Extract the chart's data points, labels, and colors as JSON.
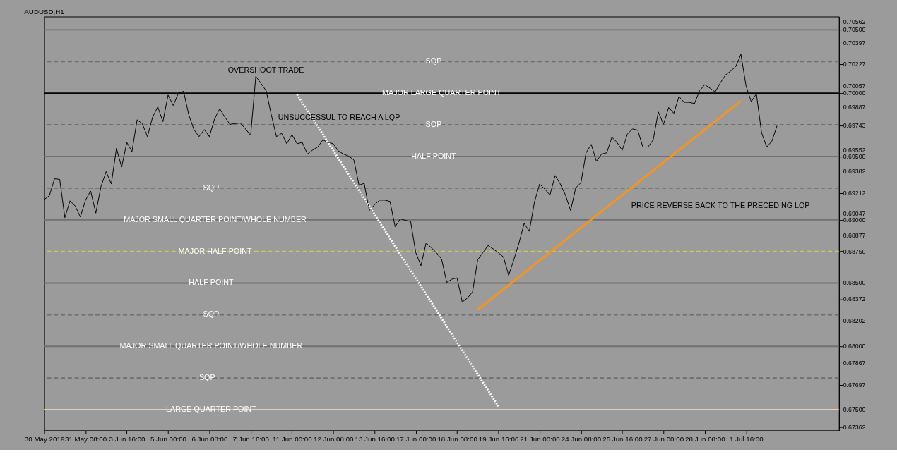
{
  "chart_data": {
    "type": "line",
    "title": "AUDUSD,H1",
    "categories": [
      "30 May 2019",
      null,
      null,
      null,
      null,
      null,
      null,
      null,
      "31 May 08:00",
      null,
      null,
      null,
      null,
      null,
      null,
      null,
      "3 Jun 16:00",
      null,
      null,
      null,
      null,
      null,
      null,
      null,
      "5 Jun 00:00",
      null,
      null,
      null,
      null,
      null,
      null,
      null,
      "6 Jun 08:00",
      null,
      null,
      null,
      null,
      null,
      null,
      null,
      "7 Jun 16:00",
      null,
      null,
      null,
      null,
      null,
      null,
      null,
      "11 Jun 00:00",
      null,
      null,
      null,
      null,
      null,
      null,
      null,
      "12 Jun 08:00",
      null,
      null,
      null,
      null,
      null,
      null,
      null,
      "13 Jun 16:00",
      null,
      null,
      null,
      null,
      null,
      null,
      null,
      "17 Jun 00:00",
      null,
      null,
      null,
      null,
      null,
      null,
      null,
      "18 Jun 08:00",
      null,
      null,
      null,
      null,
      null,
      null,
      null,
      "19 Jun 16:00",
      null,
      null,
      null,
      null,
      null,
      null,
      null,
      "21 Jun 00:00",
      null,
      null,
      null,
      null,
      null,
      null,
      null,
      "24 Jun 08:00",
      null,
      null,
      null,
      null,
      null,
      null,
      null,
      "25 Jun 16:00",
      null,
      null,
      null,
      null,
      null,
      null,
      null,
      "27 Jun 00:00",
      null,
      null,
      null,
      null,
      null,
      null,
      null,
      "28 Jun 08:00",
      null,
      null,
      null,
      null,
      null,
      null,
      null,
      "1 Jul 16:00",
      null,
      null,
      null,
      null,
      null,
      null,
      null,
      null,
      null,
      null,
      null,
      null,
      null,
      null,
      null,
      null,
      null,
      null
    ],
    "ylim": [
      0.67336,
      0.70605
    ],
    "yticks": [
      {
        "value": 0.70562,
        "label": "0.70562"
      },
      {
        "value": 0.705,
        "label": "0.70500"
      },
      {
        "value": 0.70397,
        "label": "0.70397"
      },
      {
        "value": 0.70227,
        "label": "0.70227"
      },
      {
        "value": 0.70057,
        "label": "0.70057"
      },
      {
        "value": 0.7,
        "label": "0.70000"
      },
      {
        "value": 0.69887,
        "label": "0.69887"
      },
      {
        "value": 0.69743,
        "label": "0.69743"
      },
      {
        "value": 0.69552,
        "label": "0.69552"
      },
      {
        "value": 0.695,
        "label": "0.69500"
      },
      {
        "value": 0.69382,
        "label": "0.69382"
      },
      {
        "value": 0.69212,
        "label": "0.69212"
      },
      {
        "value": 0.69047,
        "label": "0.69047"
      },
      {
        "value": 0.69,
        "label": "0.69000"
      },
      {
        "value": 0.68877,
        "label": "0.68877"
      },
      {
        "value": 0.6875,
        "label": "0.68750"
      },
      {
        "value": 0.685,
        "label": "0.68500"
      },
      {
        "value": 0.68372,
        "label": "0.68372"
      },
      {
        "value": 0.68202,
        "label": "0.68202"
      },
      {
        "value": 0.68,
        "label": "0.68000"
      },
      {
        "value": 0.67867,
        "label": "0.67867"
      },
      {
        "value": 0.67697,
        "label": "0.67697"
      },
      {
        "value": 0.675,
        "label": "0.67500"
      },
      {
        "value": 0.67362,
        "label": "0.67362"
      }
    ],
    "grid": false,
    "marker": "none",
    "series": [
      {
        "color": "#000000",
        "line_style": "solid",
        "values": [
          0.6916,
          0.69191,
          0.69324,
          0.69319,
          0.69017,
          0.6915,
          0.69109,
          0.69022,
          0.69155,
          0.69227,
          0.69053,
          0.69263,
          0.6938,
          0.69283,
          0.69565,
          0.69416,
          0.69611,
          0.69539,
          0.6979,
          0.69759,
          0.69657,
          0.69811,
          0.69892,
          0.69775,
          0.69985,
          0.69903,
          0.7,
          0.70015,
          0.69831,
          0.69713,
          0.69657,
          0.69713,
          0.69657,
          0.69795,
          0.69877,
          0.69811,
          0.69754,
          0.6976,
          0.69764,
          0.69718,
          0.69667,
          0.70133,
          0.70077,
          0.7002,
          0.6983,
          0.69657,
          0.69683,
          0.69601,
          0.69672,
          0.69601,
          0.69611,
          0.69519,
          0.6955,
          0.69575,
          0.69631,
          0.6961,
          0.69601,
          0.69544,
          0.69519,
          0.69503,
          0.69473,
          0.69273,
          0.69288,
          0.69073,
          0.69119,
          0.69155,
          0.69155,
          0.69145,
          0.68945,
          0.69007,
          0.68996,
          0.68986,
          0.6874,
          0.68638,
          0.68817,
          0.6878,
          0.6874,
          0.6869,
          0.68505,
          0.68531,
          0.68541,
          0.68351,
          0.68382,
          0.6843,
          0.68684,
          0.6874,
          0.68797,
          0.6877,
          0.6874,
          0.68705,
          0.68561,
          0.68684,
          0.68817,
          0.68971,
          0.68909,
          0.6914,
          0.69283,
          0.69242,
          0.69196,
          0.6935,
          0.69283,
          0.69196,
          0.69073,
          0.69252,
          0.69293,
          0.69529,
          0.69596,
          0.69462,
          0.69519,
          0.69529,
          0.69652,
          0.69611,
          0.69549,
          0.69677,
          0.69718,
          0.69708,
          0.69575,
          0.69575,
          0.69631,
          0.69852,
          0.69754,
          0.69887,
          0.69841,
          0.69974,
          0.69928,
          0.69928,
          0.69918,
          0.7002,
          0.70067,
          0.7004,
          0.7001,
          0.7008,
          0.70143,
          0.70174,
          0.7021,
          0.70307,
          0.70056,
          0.69933,
          0.69995,
          0.69688,
          0.69575,
          0.69621,
          0.69743,
          null,
          null,
          null,
          null,
          null,
          null,
          null,
          null,
          null,
          null,
          null,
          null
        ]
      },
      {
        "color": "#ffffff",
        "line_style": "dotted",
        "values": [
          null,
          null,
          null,
          null,
          null,
          null,
          null,
          null,
          null,
          null,
          null,
          null,
          null,
          null,
          null,
          null,
          null,
          null,
          null,
          null,
          null,
          null,
          null,
          null,
          null,
          null,
          null,
          null,
          null,
          null,
          null,
          null,
          null,
          null,
          null,
          null,
          null,
          null,
          null,
          null,
          null,
          null,
          null,
          null,
          null,
          null,
          null,
          null,
          null,
          0.6999,
          null,
          null,
          null,
          null,
          null,
          null,
          null,
          null,
          null,
          null,
          null,
          null,
          null,
          null,
          null,
          null,
          null,
          null,
          null,
          null,
          null,
          null,
          null,
          null,
          null,
          null,
          null,
          null,
          null,
          null,
          null,
          null,
          null,
          null,
          null,
          null,
          null,
          null,
          0.67527,
          null,
          null,
          null,
          null,
          null,
          null,
          null,
          null,
          null,
          null,
          null,
          null,
          null,
          null,
          null,
          null,
          null,
          null,
          null,
          null,
          null,
          null,
          null,
          null,
          null,
          null,
          null,
          null,
          null,
          null,
          null,
          null,
          null,
          null,
          null,
          null,
          null,
          null,
          null,
          null,
          null,
          null,
          null,
          null,
          null,
          null,
          null,
          null,
          null,
          null,
          null,
          null,
          null,
          null,
          null,
          null,
          null,
          null,
          null,
          null,
          null,
          null,
          null,
          null,
          null,
          null
        ]
      },
      {
        "color": "#f7941d",
        "line_style": "solid",
        "values": [
          null,
          null,
          null,
          null,
          null,
          null,
          null,
          null,
          null,
          null,
          null,
          null,
          null,
          null,
          null,
          null,
          null,
          null,
          null,
          null,
          null,
          null,
          null,
          null,
          null,
          null,
          null,
          null,
          null,
          null,
          null,
          null,
          null,
          null,
          null,
          null,
          null,
          null,
          null,
          null,
          null,
          null,
          null,
          null,
          null,
          null,
          null,
          null,
          null,
          null,
          null,
          null,
          null,
          null,
          null,
          null,
          null,
          null,
          null,
          null,
          null,
          null,
          null,
          null,
          null,
          null,
          null,
          null,
          null,
          null,
          null,
          null,
          null,
          null,
          null,
          null,
          null,
          null,
          null,
          null,
          null,
          null,
          null,
          null,
          0.6829,
          null,
          null,
          null,
          null,
          null,
          null,
          null,
          null,
          null,
          null,
          null,
          null,
          null,
          null,
          null,
          null,
          null,
          null,
          null,
          null,
          null,
          null,
          null,
          null,
          null,
          null,
          null,
          null,
          null,
          null,
          null,
          null,
          null,
          null,
          null,
          null,
          null,
          null,
          null,
          null,
          null,
          null,
          null,
          null,
          null,
          null,
          null,
          null,
          null,
          null,
          0.69939,
          null,
          null,
          null,
          null,
          null,
          null,
          null,
          null,
          null,
          null,
          null,
          null,
          null,
          null,
          null,
          null,
          null,
          null,
          null
        ]
      }
    ],
    "ref_lines": [
      {
        "axis": "y",
        "value": 0.705,
        "color": "#707070",
        "line_style": "solid"
      },
      {
        "axis": "y",
        "value": 0.7025,
        "color": "#6e6e6e",
        "line_style": "dashed",
        "label": "SQP"
      },
      {
        "axis": "y",
        "value": 0.7,
        "color": "#000000",
        "line_style": "solid",
        "label": "MAJOR LARGE QUARTER POINT"
      },
      {
        "axis": "y",
        "value": 0.6975,
        "color": "#6e6e6e",
        "line_style": "dashed",
        "label": "SQP"
      },
      {
        "axis": "y",
        "value": 0.695,
        "color": "#707070",
        "line_style": "solid",
        "label": "HALF POINT"
      },
      {
        "axis": "y",
        "value": 0.6925,
        "color": "#6e6e6e",
        "line_style": "dashed",
        "label": "SQP"
      },
      {
        "axis": "y",
        "value": 0.69,
        "color": "#707070",
        "line_style": "solid",
        "label": "MAJOR SMALL QUARTER POINT/WHOLE NUMBER"
      },
      {
        "axis": "y",
        "value": 0.6875,
        "color": "#c8c864",
        "line_style": "dashed",
        "label": "MAJOR HALF POINT"
      },
      {
        "axis": "y",
        "value": 0.685,
        "color": "#707070",
        "line_style": "solid",
        "label": "HALF POINT"
      },
      {
        "axis": "y",
        "value": 0.6825,
        "color": "#6e6e6e",
        "line_style": "dashed",
        "label": "SQP"
      },
      {
        "axis": "y",
        "value": 0.68,
        "color": "#707070",
        "line_style": "solid",
        "label": "MAJOR SMALL QUARTER POINT/WHOLE NUMBER"
      },
      {
        "axis": "y",
        "value": 0.6775,
        "color": "#6e6e6e",
        "line_style": "dashed",
        "label": "SQP"
      },
      {
        "axis": "y",
        "value": 0.675,
        "color": "#ffe0c0",
        "line_style": "solid",
        "label": "LARGE QUARTER POINT"
      }
    ],
    "annotations": [
      "OVERSHOOT TRADE",
      "UNSUCCESSUL TO REACH A LQP",
      "PRICE REVERSE BACK TO THE PRECEDING LQP"
    ]
  }
}
